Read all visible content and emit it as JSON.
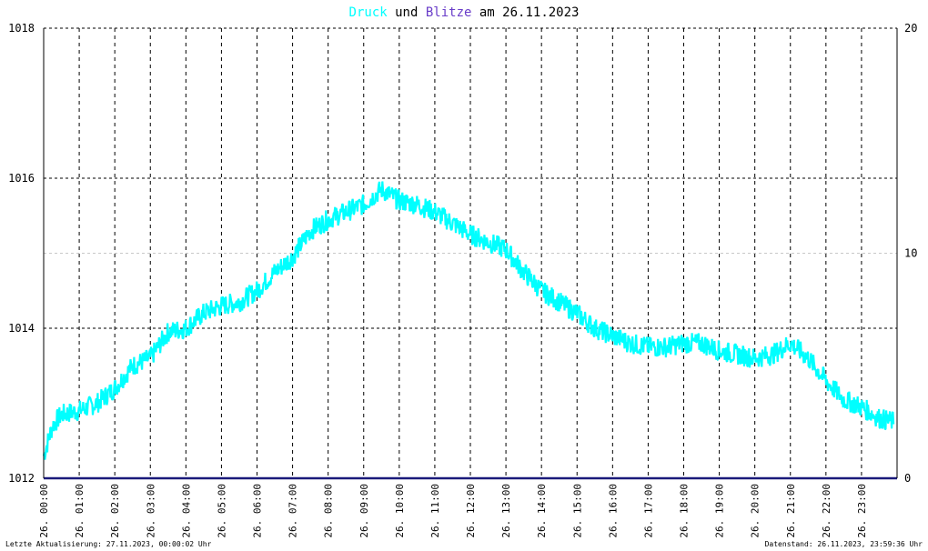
{
  "title": {
    "series1": "Druck",
    "connector1": "und",
    "series2": "Blitze",
    "connector2": "am",
    "date": "26.11.2023"
  },
  "footer": {
    "left": "Letzte Aktualisierung: 27.11.2023, 00:00:02 Uhr",
    "right": "Datenstand: 26.11.2023, 23:59:36 Uhr"
  },
  "colors": {
    "druck": "#00ffff",
    "blitze": "#6a3dc9",
    "zero_line": "#1a1a7a",
    "grid": "#000000",
    "minor_grid": "#c8c8c8"
  },
  "chart_data": {
    "type": "line",
    "x_unit": "hour",
    "xlim": [
      0,
      24
    ],
    "x_ticks": [
      0,
      1,
      2,
      3,
      4,
      5,
      6,
      7,
      8,
      9,
      10,
      11,
      12,
      13,
      14,
      15,
      16,
      17,
      18,
      19,
      20,
      21,
      22,
      23
    ],
    "x_tick_labels": [
      "26. 00:00",
      "26. 01:00",
      "26. 02:00",
      "26. 03:00",
      "26. 04:00",
      "26. 05:00",
      "26. 06:00",
      "26. 07:00",
      "26. 08:00",
      "26. 09:00",
      "26. 10:00",
      "26. 11:00",
      "26. 12:00",
      "26. 13:00",
      "26. 14:00",
      "26. 15:00",
      "26. 16:00",
      "26. 17:00",
      "26. 18:00",
      "26. 19:00",
      "26. 20:00",
      "26. 21:00",
      "26. 22:00",
      "26. 23:00"
    ],
    "y_left": {
      "ylim": [
        1012,
        1018
      ],
      "ticks": [
        1012,
        1014,
        1016,
        1018
      ],
      "labels": [
        "1012",
        "1014",
        "1016",
        "1018"
      ]
    },
    "y_right": {
      "ylim": [
        0,
        20
      ],
      "ticks": [
        0,
        10,
        20
      ],
      "labels": [
        "0",
        "10",
        "20"
      ]
    },
    "grid": true,
    "series": [
      {
        "name": "Druck",
        "axis": "left",
        "x": [
          0,
          0.25,
          0.5,
          1,
          1.5,
          2,
          2.5,
          3,
          3.5,
          4,
          4.5,
          5,
          5.5,
          6,
          6.5,
          7,
          7.5,
          8,
          8.5,
          9,
          9.5,
          10,
          10.5,
          11,
          11.5,
          12,
          12.5,
          13,
          13.5,
          14,
          14.5,
          15,
          15.5,
          16,
          16.5,
          17,
          17.5,
          18,
          18.5,
          19,
          19.5,
          20,
          20.5,
          21,
          21.5,
          22,
          22.5,
          23,
          23.5,
          23.9
        ],
        "y": [
          1012.3,
          1012.7,
          1012.85,
          1012.9,
          1013.0,
          1013.2,
          1013.5,
          1013.6,
          1013.95,
          1014.0,
          1014.2,
          1014.3,
          1014.35,
          1014.5,
          1014.75,
          1014.95,
          1015.3,
          1015.45,
          1015.55,
          1015.65,
          1015.85,
          1015.7,
          1015.65,
          1015.55,
          1015.4,
          1015.25,
          1015.15,
          1015.05,
          1014.75,
          1014.5,
          1014.35,
          1014.2,
          1014.0,
          1013.9,
          1013.8,
          1013.75,
          1013.75,
          1013.8,
          1013.8,
          1013.7,
          1013.65,
          1013.6,
          1013.65,
          1013.8,
          1013.6,
          1013.3,
          1013.05,
          1012.95,
          1012.8,
          1012.75
        ]
      },
      {
        "name": "Blitze",
        "axis": "right",
        "x": [
          0,
          24
        ],
        "y": [
          0,
          0
        ]
      }
    ]
  }
}
